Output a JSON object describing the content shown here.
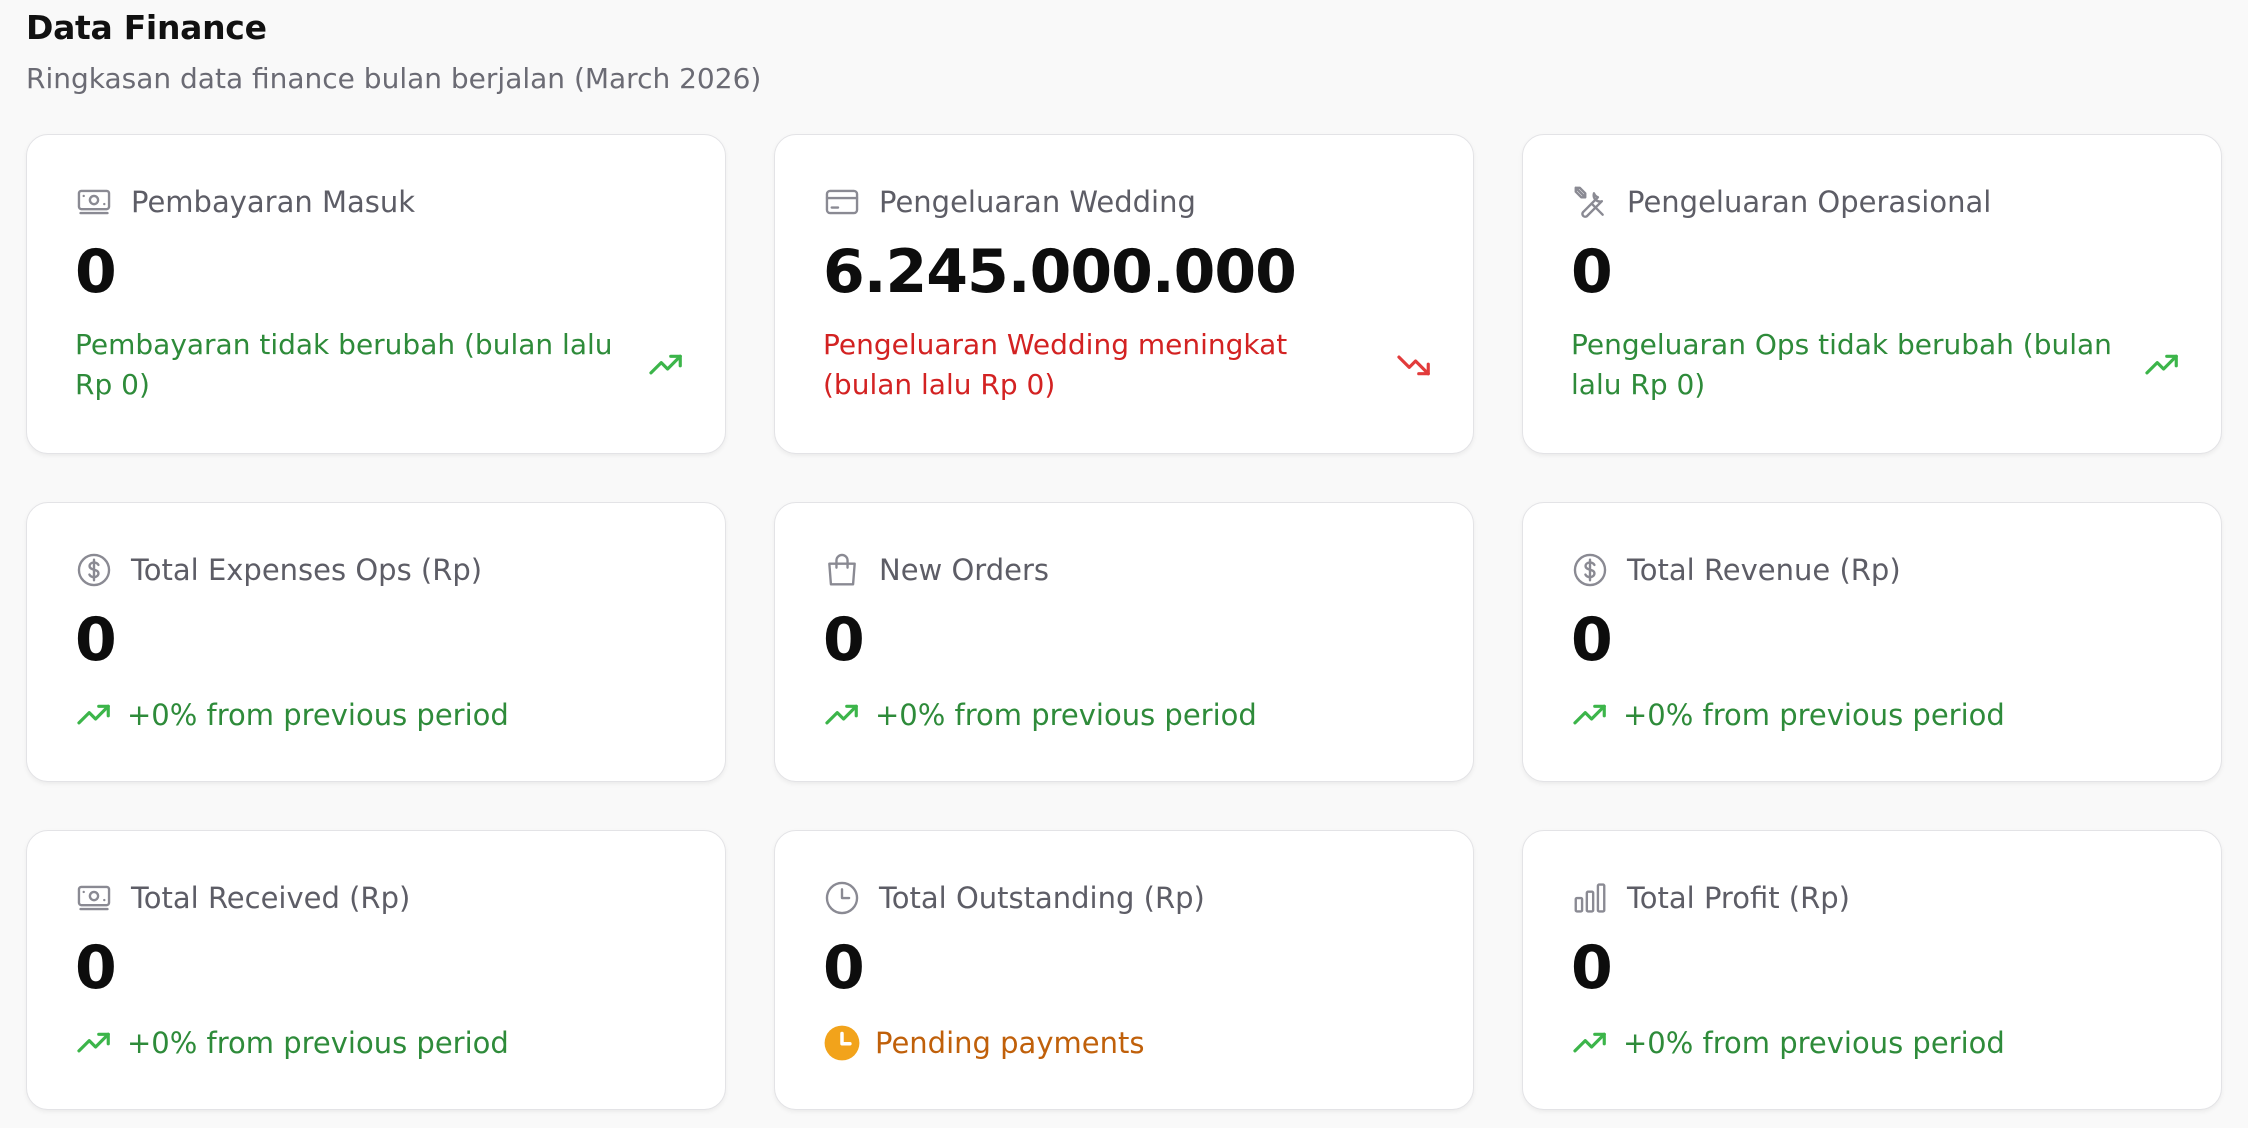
{
  "header": {
    "title": "Data Finance",
    "subtitle": "Ringkasan data finance bulan berjalan (March 2026)"
  },
  "colors": {
    "positive": "#2e8b3a",
    "negative": "#d32222",
    "pending": "#c0600a",
    "pending_icon": "#f2a31b"
  },
  "cards": [
    {
      "icon": "banknote-icon",
      "label": "Pembayaran Masuk",
      "value": "0",
      "trend": "Pembayaran tidak berubah (bulan lalu Rp 0)",
      "trend_icon": "trending-up-icon"
    },
    {
      "icon": "credit-card-icon",
      "label": "Pengeluaran Wedding",
      "value": "6.245.000.000",
      "trend": "Pengeluaran Wedding meningkat (bulan lalu Rp 0)",
      "trend_icon": "trending-down-icon"
    },
    {
      "icon": "tools-icon",
      "label": "Pengeluaran Operasional",
      "value": "0",
      "trend": "Pengeluaran Ops tidak berubah (bulan lalu Rp 0)",
      "trend_icon": "trending-up-icon"
    },
    {
      "icon": "dollar-circle-icon",
      "label": "Total Expenses Ops (Rp)",
      "value": "0",
      "trend": "+0% from previous period",
      "trend_icon": "trending-up-icon"
    },
    {
      "icon": "shopping-bag-icon",
      "label": "New Orders",
      "value": "0",
      "trend": "+0% from previous period",
      "trend_icon": "trending-up-icon"
    },
    {
      "icon": "dollar-circle-icon",
      "label": "Total Revenue (Rp)",
      "value": "0",
      "trend": "+0% from previous period",
      "trend_icon": "trending-up-icon"
    },
    {
      "icon": "banknote-icon",
      "label": "Total Received (Rp)",
      "value": "0",
      "trend": "+0% from previous period",
      "trend_icon": "trending-up-icon"
    },
    {
      "icon": "clock-icon",
      "label": "Total Outstanding (Rp)",
      "value": "0",
      "trend": "Pending payments",
      "trend_icon": "clock-filled-icon"
    },
    {
      "icon": "bar-chart-icon",
      "label": "Total Profit (Rp)",
      "value": "0",
      "trend": "+0% from previous period",
      "trend_icon": "trending-up-icon"
    }
  ]
}
